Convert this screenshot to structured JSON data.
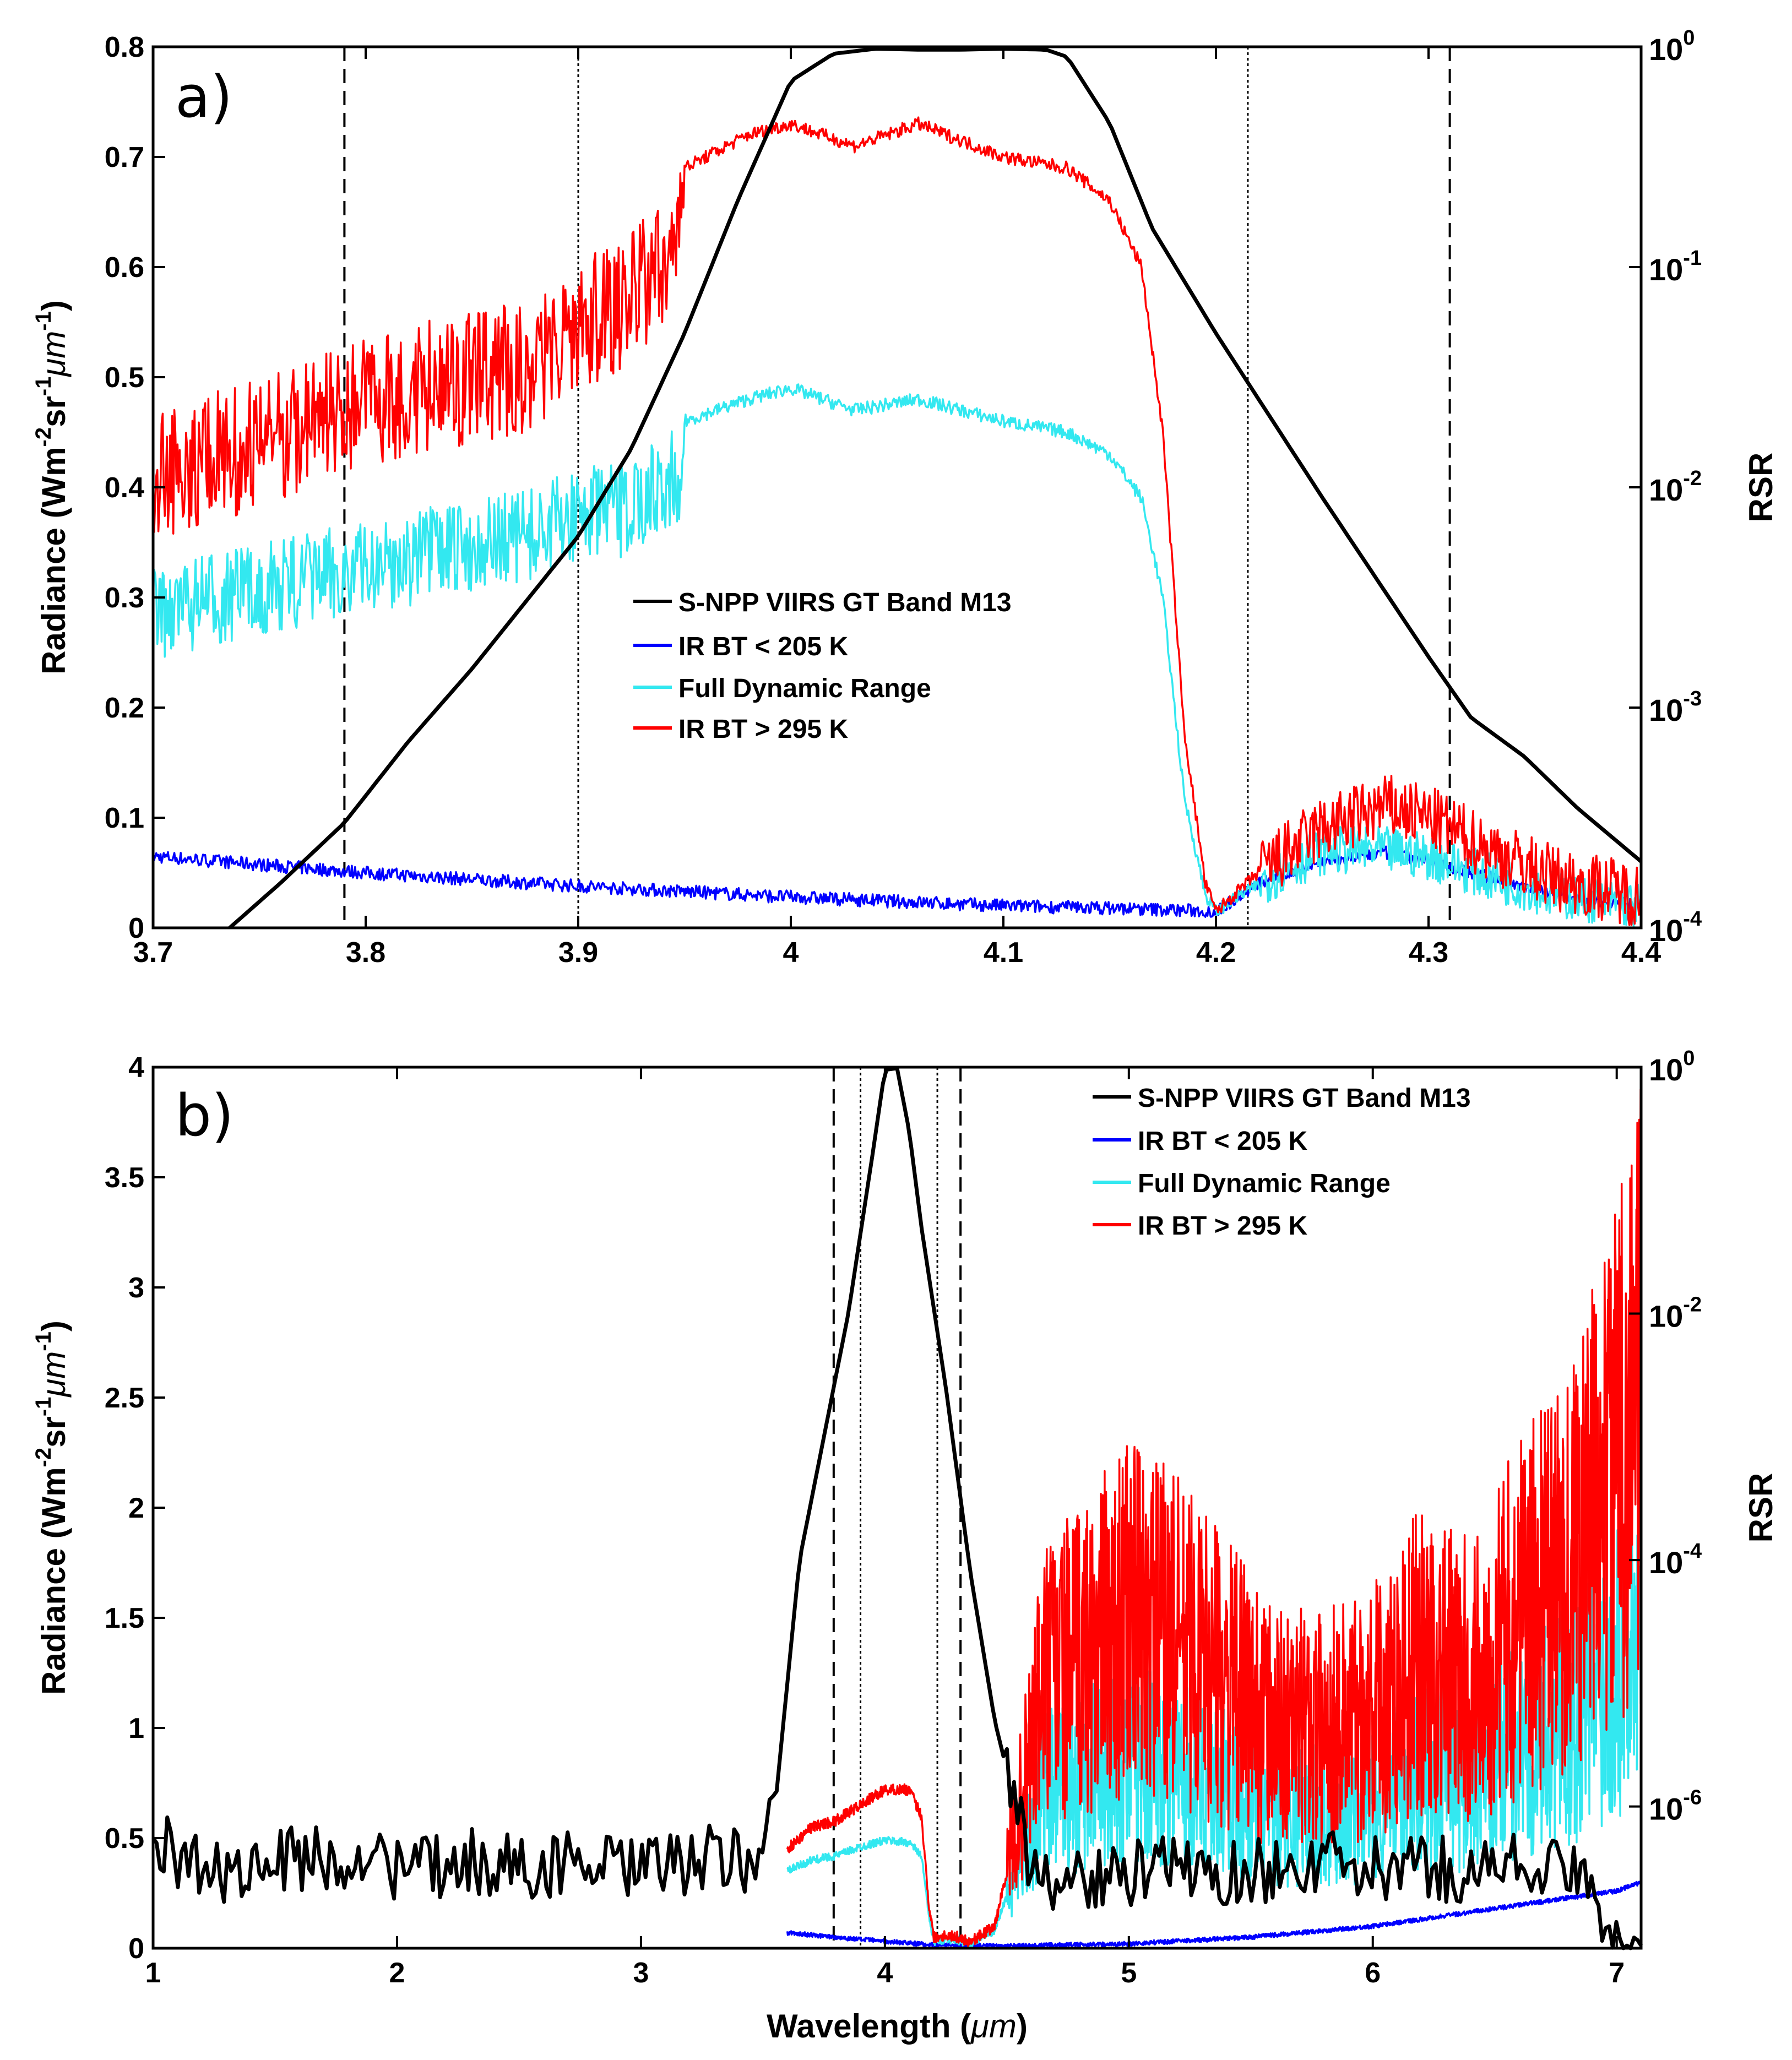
{
  "chart_data": [
    {
      "type": "line",
      "panel_label": "a)",
      "xlabel": "",
      "ylabel": "Radiance (Wm-2sr-1μm-1)",
      "ylabel_parts": {
        "base": "Radiance (Wm",
        "e1": "-2",
        "mid": "sr",
        "e2": "-1",
        "mu": "μm",
        "e3": "-1",
        "end": ")"
      },
      "y2label": "RSR",
      "xlim": [
        3.7,
        4.4
      ],
      "ylim": [
        0,
        0.8
      ],
      "y2lim_log10": [
        -4,
        0
      ],
      "xticks": [
        3.7,
        3.8,
        3.9,
        4.0,
        4.1,
        4.2,
        4.3,
        4.4
      ],
      "xtick_labels": [
        "3.7",
        "3.8",
        "3.9",
        "4",
        "4.1",
        "4.2",
        "4.3",
        "4.4"
      ],
      "yticks": [
        0,
        0.1,
        0.2,
        0.3,
        0.4,
        0.5,
        0.6,
        0.7,
        0.8
      ],
      "ytick_labels": [
        "0",
        "0.1",
        "0.2",
        "0.3",
        "0.4",
        "0.5",
        "0.6",
        "0.7",
        "0.8"
      ],
      "y2ticks": [
        {
          "exp": -4,
          "base": "10",
          "sup": "-4"
        },
        {
          "exp": -3,
          "base": "10",
          "sup": "-3"
        },
        {
          "exp": -2,
          "base": "10",
          "sup": "-2"
        },
        {
          "exp": -1,
          "base": "10",
          "sup": "-1"
        },
        {
          "exp": 0,
          "base": "10",
          "sup": "0"
        }
      ],
      "vlines": [
        {
          "x": 3.79,
          "style": "dashed"
        },
        {
          "x": 3.9,
          "style": "dotted"
        },
        {
          "x": 4.215,
          "style": "dotted"
        },
        {
          "x": 4.31,
          "style": "dashed"
        }
      ],
      "legend": {
        "position": "center",
        "entries": [
          {
            "label": "S-NPP VIIRS GT Band M13",
            "color": "#000000"
          },
          {
            "label": "IR BT < 205 K",
            "color": "#0000ff"
          },
          {
            "label": "Full Dynamic Range",
            "color": "#33e8f0"
          },
          {
            "label": "IR BT > 295 K",
            "color": "#ff0000"
          }
        ]
      },
      "series": [
        {
          "name": "S-NPP VIIRS GT Band M13",
          "color": "#000000",
          "axis": "right_log",
          "x": [
            3.736,
            3.76,
            3.79,
            3.82,
            3.85,
            3.875,
            3.9,
            3.925,
            3.95,
            3.975,
            4.0,
            4.02,
            4.04,
            4.06,
            4.08,
            4.1,
            4.12,
            4.13,
            4.15,
            4.17,
            4.2,
            4.25,
            4.3,
            4.32,
            4.345,
            4.37,
            4.4
          ],
          "y": [
            0.0001,
            0.00016,
            0.0003,
            0.0007,
            0.0015,
            0.003,
            0.006,
            0.015,
            0.05,
            0.2,
            0.7,
            0.93,
            0.98,
            0.97,
            0.97,
            0.98,
            0.97,
            0.9,
            0.45,
            0.15,
            0.05,
            0.009,
            0.0017,
            0.0009,
            0.0006,
            0.00035,
            0.0002
          ]
        },
        {
          "name": "IR BT > 295 K",
          "color": "#ff0000",
          "axis": "left",
          "x": [
            3.7,
            3.75,
            3.8,
            3.85,
            3.88,
            3.9,
            3.92,
            3.95,
            3.98,
            4.0,
            4.03,
            4.06,
            4.1,
            4.13,
            4.15,
            4.165,
            4.175,
            4.185,
            4.195,
            4.2,
            4.22,
            4.25,
            4.28,
            4.3,
            4.33,
            4.36,
            4.4
          ],
          "y": [
            0.47,
            0.5,
            0.54,
            0.56,
            0.57,
            0.61,
            0.62,
            0.69,
            0.72,
            0.73,
            0.71,
            0.73,
            0.7,
            0.69,
            0.66,
            0.6,
            0.45,
            0.18,
            0.04,
            0.015,
            0.05,
            0.09,
            0.11,
            0.1,
            0.07,
            0.045,
            0.03
          ]
        },
        {
          "name": "Full Dynamic Range",
          "color": "#33e8f0",
          "axis": "left",
          "x": [
            3.7,
            3.75,
            3.8,
            3.85,
            3.88,
            3.9,
            3.92,
            3.95,
            3.98,
            4.0,
            4.03,
            4.06,
            4.1,
            4.13,
            4.15,
            4.165,
            4.175,
            4.185,
            4.195,
            4.2,
            4.22,
            4.25,
            4.28,
            4.3,
            4.33,
            4.36,
            4.4
          ],
          "y": [
            0.33,
            0.35,
            0.37,
            0.39,
            0.4,
            0.42,
            0.42,
            0.46,
            0.48,
            0.49,
            0.47,
            0.48,
            0.46,
            0.45,
            0.43,
            0.39,
            0.3,
            0.12,
            0.03,
            0.015,
            0.04,
            0.07,
            0.07,
            0.065,
            0.045,
            0.03,
            0.02
          ]
        },
        {
          "name": "IR BT < 205 K",
          "color": "#0000ff",
          "axis": "left",
          "x": [
            3.7,
            3.8,
            3.9,
            4.0,
            4.1,
            4.15,
            4.2,
            4.22,
            4.25,
            4.28,
            4.3,
            4.33,
            4.36,
            4.4
          ],
          "y": [
            0.065,
            0.05,
            0.038,
            0.028,
            0.02,
            0.018,
            0.015,
            0.04,
            0.06,
            0.068,
            0.06,
            0.045,
            0.03,
            0.02
          ]
        }
      ]
    },
    {
      "type": "line",
      "panel_label": "b)",
      "xlabel": "Wavelength (μm)",
      "xlabel_parts": {
        "base": "Wavelength (",
        "mu": "μm",
        "end": ")"
      },
      "ylabel": "Radiance (Wm-2sr-1μm-1)",
      "ylabel_parts": {
        "base": "Radiance (Wm",
        "e1": "-2",
        "mid": "sr",
        "e2": "-1",
        "mu": "μm",
        "e3": "-1",
        "end": ")"
      },
      "y2label": "RSR",
      "xlim": [
        1,
        7.1
      ],
      "ylim": [
        0,
        4
      ],
      "y2lim_log10": [
        -7.15,
        0
      ],
      "xticks": [
        1,
        2,
        3,
        4,
        5,
        6,
        7
      ],
      "xtick_labels": [
        "1",
        "2",
        "3",
        "4",
        "5",
        "6",
        "7"
      ],
      "yticks": [
        0,
        0.5,
        1,
        1.5,
        2,
        2.5,
        3,
        3.5,
        4
      ],
      "ytick_labels": [
        "0",
        "0.5",
        "1",
        "1.5",
        "2",
        "2.5",
        "3",
        "3.5",
        "4"
      ],
      "y2ticks": [
        {
          "exp": -6,
          "base": "10",
          "sup": "-6"
        },
        {
          "exp": -4,
          "base": "10",
          "sup": "-4"
        },
        {
          "exp": -2,
          "base": "10",
          "sup": "-2"
        },
        {
          "exp": 0,
          "base": "10",
          "sup": "0"
        }
      ],
      "vlines": [
        {
          "x": 3.79,
          "style": "dashed"
        },
        {
          "x": 3.9,
          "style": "dotted"
        },
        {
          "x": 4.215,
          "style": "dotted"
        },
        {
          "x": 4.31,
          "style": "dashed"
        }
      ],
      "legend": {
        "position": "top-right",
        "entries": [
          {
            "label": "S-NPP VIIRS GT Band M13",
            "color": "#000000"
          },
          {
            "label": "IR BT < 205 K",
            "color": "#0000ff"
          },
          {
            "label": "Full Dynamic Range",
            "color": "#33e8f0"
          },
          {
            "label": "IR BT > 295 K",
            "color": "#ff0000"
          }
        ]
      },
      "series": [
        {
          "name": "S-NPP VIIRS GT Band M13",
          "color": "#000000",
          "axis": "right_log",
          "x": [
            1.0,
            1.1,
            1.3,
            1.5,
            1.7,
            1.9,
            2.1,
            2.3,
            2.5,
            2.7,
            2.9,
            3.1,
            3.3,
            3.45,
            3.55,
            3.6,
            3.65,
            3.75,
            3.85,
            3.95,
            4.0,
            4.05,
            4.1,
            4.15,
            4.25,
            4.35,
            4.45,
            4.6,
            4.8,
            5.0,
            5.2,
            5.4,
            5.6,
            5.8,
            6.0,
            6.2,
            6.4,
            6.6,
            6.8,
            7.0,
            7.1
          ],
          "y": [
            5e-07,
            4e-07,
            3e-07,
            3.5e-07,
            4e-07,
            3.5e-07,
            3e-07,
            3.6e-07,
            3.2e-07,
            3.5e-07,
            3e-07,
            3.3e-07,
            3.8e-07,
            3.5e-07,
            1e-06,
            1e-05,
            0.0001,
            0.001,
            0.01,
            0.2,
            0.95,
            0.98,
            0.3,
            0.05,
            0.0025,
            8e-05,
            5e-06,
            3e-07,
            2.5e-07,
            2.8e-07,
            3.2e-07,
            2.8e-07,
            3.2e-07,
            3.4e-07,
            3e-07,
            3.2e-07,
            3e-07,
            3.5e-07,
            3e-07,
            1e-07,
            1e-07
          ]
        },
        {
          "name": "IR BT > 295 K",
          "color": "#ff0000",
          "axis": "left",
          "x": [
            3.6,
            3.7,
            3.8,
            3.9,
            4.0,
            4.1,
            4.15,
            4.18,
            4.2,
            4.25,
            4.3,
            4.35,
            4.45,
            4.55,
            4.65,
            4.8,
            5.0,
            5.2,
            5.4,
            5.6,
            5.8,
            6.0,
            6.2,
            6.4,
            6.6,
            6.8,
            7.0,
            7.1
          ],
          "y": [
            0.45,
            0.55,
            0.58,
            0.65,
            0.72,
            0.72,
            0.6,
            0.2,
            0.05,
            0.06,
            0.05,
            0.03,
            0.1,
            0.6,
            1.2,
            1.3,
            1.5,
            1.4,
            1.2,
            1.0,
            1.0,
            1.1,
            1.3,
            1.2,
            1.5,
            1.7,
            2.2,
            2.6
          ]
        },
        {
          "name": "Full Dynamic Range",
          "color": "#33e8f0",
          "axis": "left",
          "x": [
            3.6,
            3.7,
            3.8,
            3.9,
            4.0,
            4.1,
            4.15,
            4.18,
            4.2,
            4.25,
            4.3,
            4.35,
            4.45,
            4.55,
            4.65,
            4.8,
            5.0,
            5.2,
            5.4,
            5.6,
            5.8,
            6.0,
            6.2,
            6.4,
            6.6,
            6.8,
            7.0,
            7.1
          ],
          "y": [
            0.35,
            0.4,
            0.42,
            0.46,
            0.49,
            0.48,
            0.42,
            0.15,
            0.03,
            0.04,
            0.035,
            0.02,
            0.08,
            0.4,
            0.7,
            0.75,
            0.85,
            0.8,
            0.7,
            0.6,
            0.6,
            0.65,
            0.8,
            0.75,
            0.9,
            1.0,
            1.3,
            1.5
          ]
        },
        {
          "name": "IR BT < 205 K",
          "color": "#0000ff",
          "axis": "left",
          "x": [
            3.6,
            3.9,
            4.2,
            4.5,
            5.0,
            5.5,
            6.0,
            6.5,
            7.0,
            7.1
          ],
          "y": [
            0.07,
            0.04,
            0.015,
            0.01,
            0.02,
            0.05,
            0.1,
            0.18,
            0.26,
            0.3
          ]
        }
      ]
    }
  ]
}
